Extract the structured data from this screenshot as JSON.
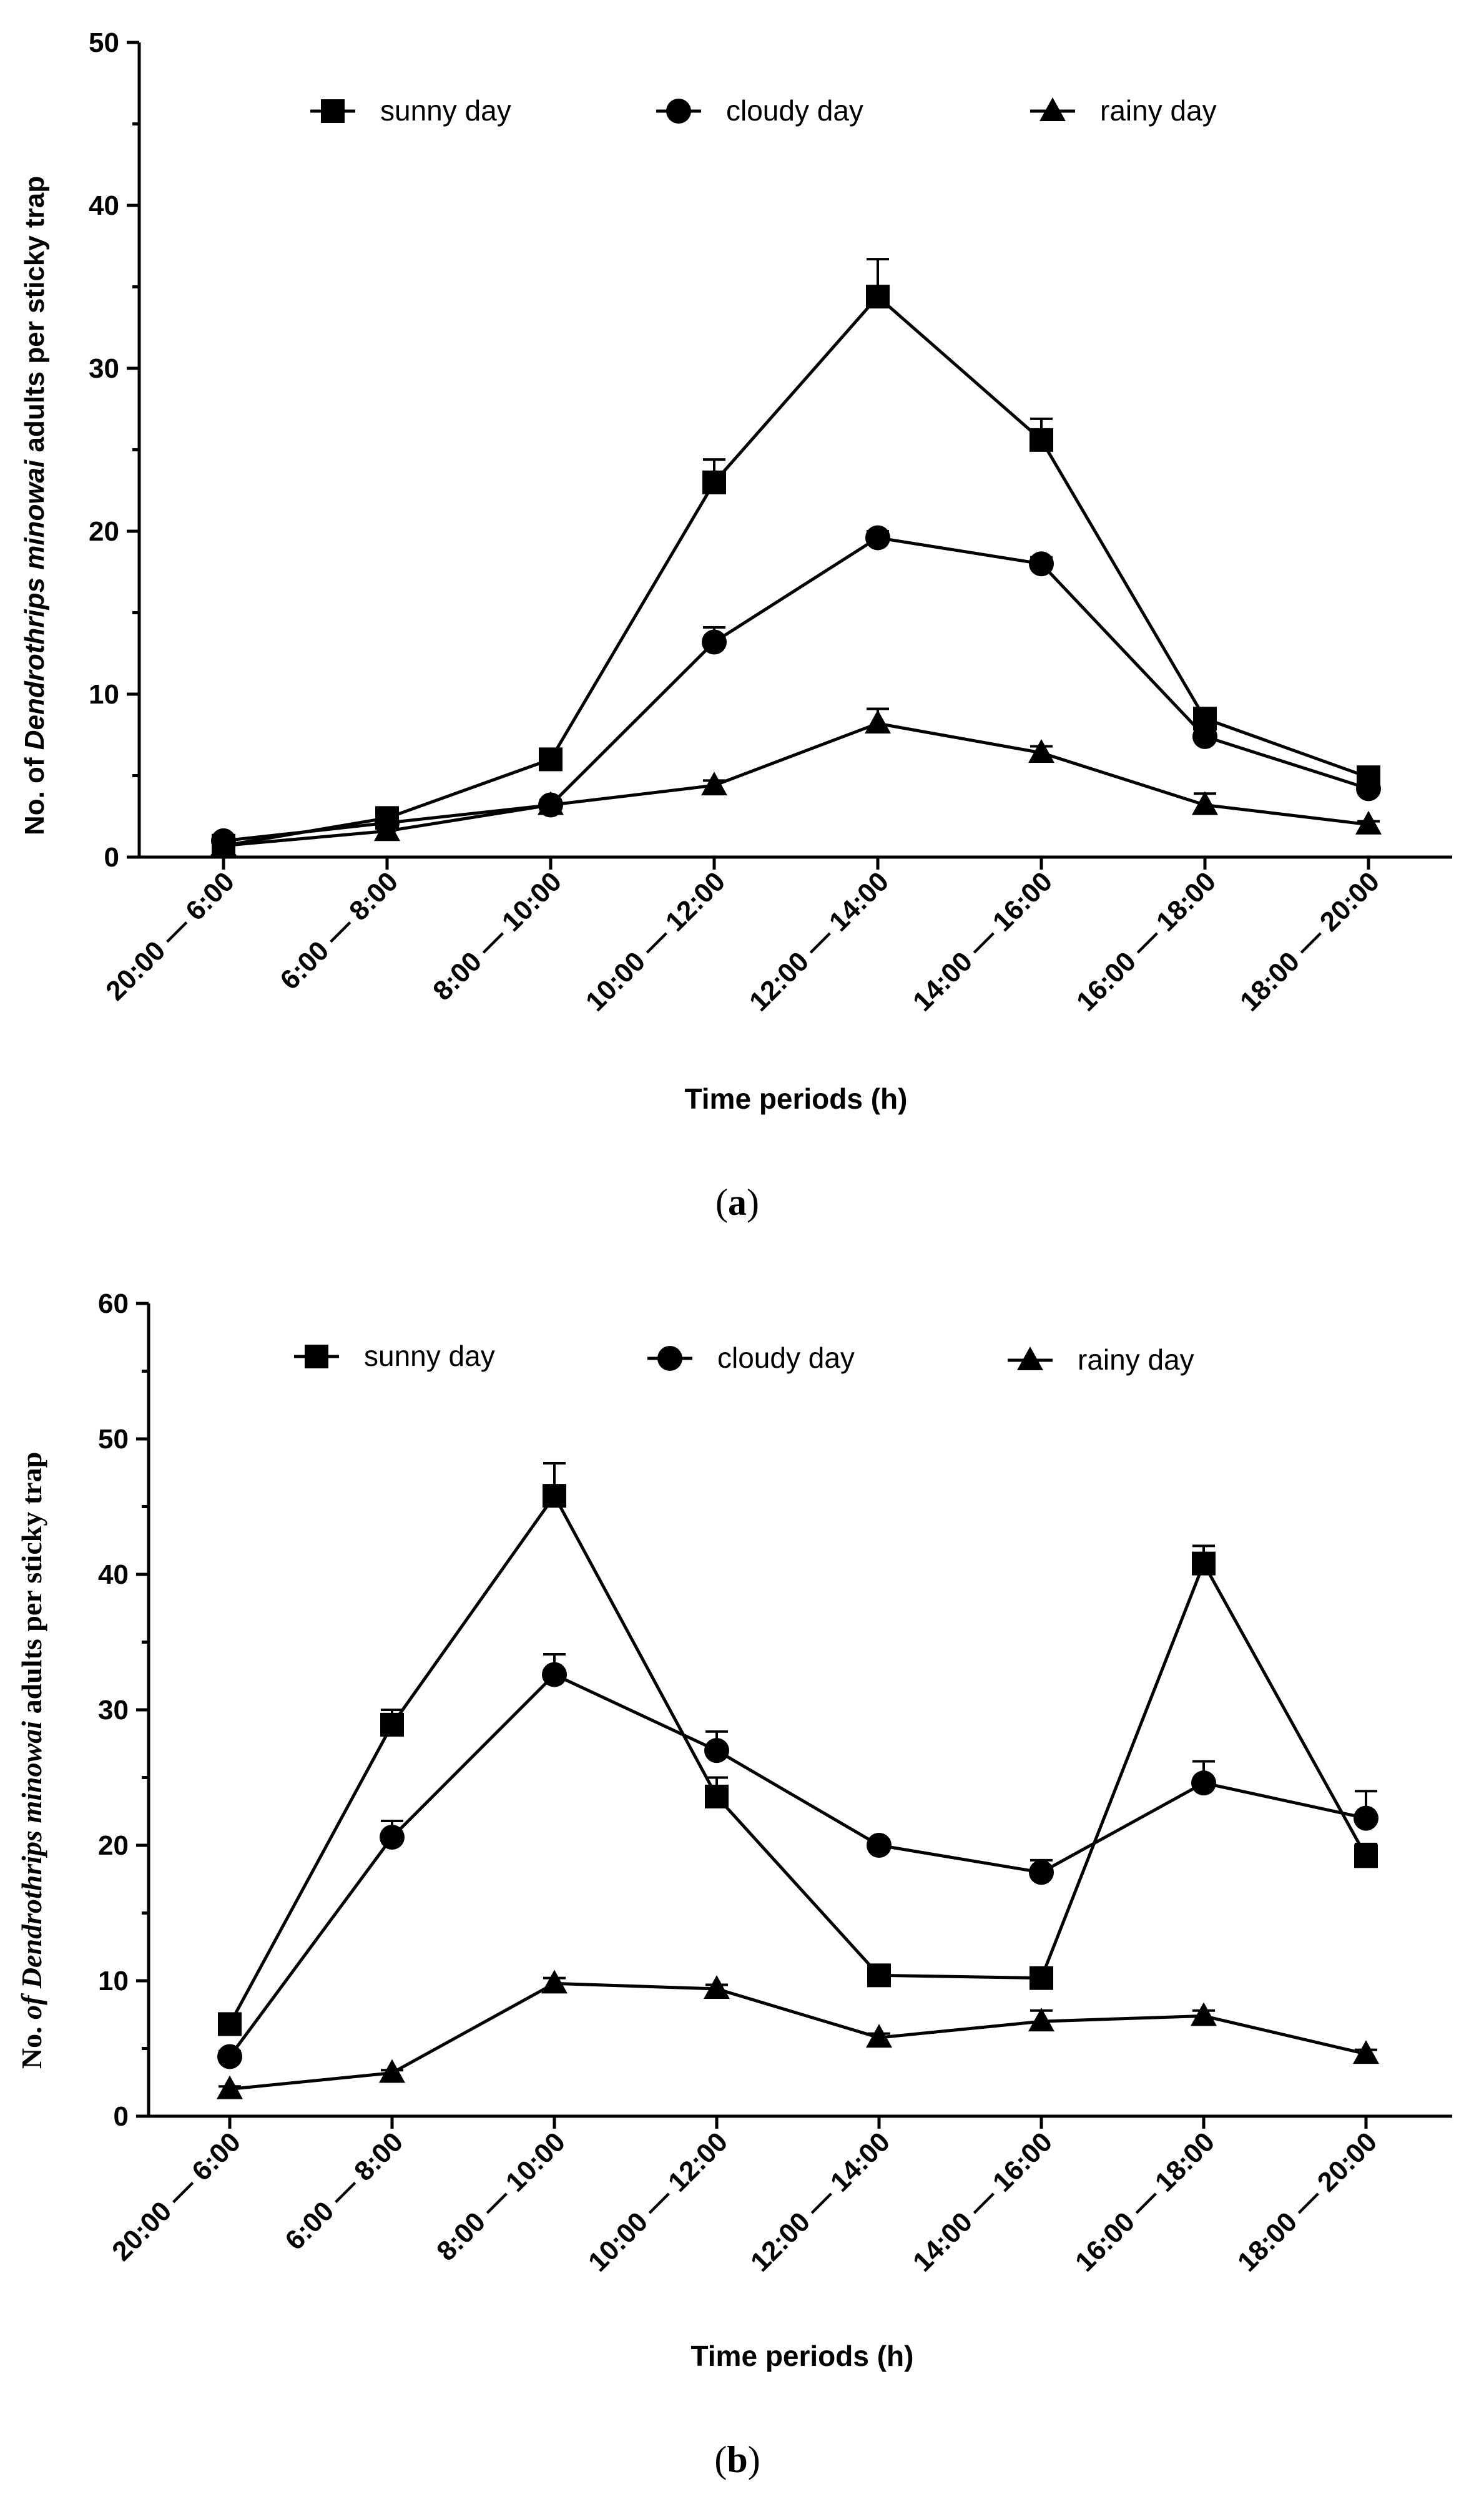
{
  "chart_data": [
    {
      "type": "line",
      "panel_label": "(a)",
      "panel_letter": "a",
      "categories": [
        "20:00 — 6:00",
        "6:00 — 8:00",
        "8:00 — 10:00",
        "10:00 — 12:00",
        "12:00 — 14:00",
        "14:00 — 16:00",
        "16:00 — 18:00",
        "18:00 — 20:00"
      ],
      "series": [
        {
          "name": "sunny day",
          "marker": "square",
          "values": [
            0.7,
            2.4,
            6.0,
            23.0,
            34.4,
            25.6,
            8.5,
            4.9
          ],
          "errors": [
            0.3,
            0.3,
            0.4,
            1.4,
            2.3,
            1.3,
            0.6,
            0.4
          ]
        },
        {
          "name": "cloudy day",
          "marker": "circle",
          "values": [
            1.0,
            2.1,
            3.2,
            13.2,
            19.6,
            18.0,
            7.4,
            4.2
          ],
          "errors": [
            0.2,
            0.2,
            0.3,
            0.9,
            0.4,
            0.4,
            0.4,
            0.3
          ]
        },
        {
          "name": "rainy day",
          "marker": "triangle",
          "values": [
            0.7,
            1.6,
            3.2,
            4.4,
            8.2,
            6.4,
            3.2,
            2.0
          ],
          "errors": [
            0.1,
            0.2,
            0.3,
            0.3,
            0.9,
            0.4,
            0.7,
            0.2
          ]
        }
      ],
      "ylim": [
        0,
        50
      ],
      "yticks": [
        "0",
        "10",
        "20",
        "30",
        "40",
        "50"
      ],
      "xlabel": "Time periods (h)",
      "ylabel_parts": [
        "No. of ",
        "Dendrothrips minowai",
        " adults per sticky trap"
      ],
      "legend": "top"
    },
    {
      "type": "line",
      "panel_label": "(b)",
      "panel_letter": "b",
      "categories": [
        "20:00 — 6:00",
        "6:00 — 8:00",
        "8:00 — 10:00",
        "10:00 — 12:00",
        "12:00 — 14:00",
        "14:00 — 16:00",
        "16:00 — 18:00",
        "18:00 — 20:00"
      ],
      "series": [
        {
          "name": "sunny day",
          "marker": "square",
          "values": [
            6.8,
            28.9,
            45.8,
            23.6,
            10.4,
            10.2,
            40.8,
            19.2
          ],
          "errors": [
            0.5,
            1.1,
            2.4,
            1.4,
            0.6,
            0.5,
            1.3,
            0.9
          ]
        },
        {
          "name": "cloudy day",
          "marker": "circle",
          "values": [
            4.4,
            20.6,
            32.6,
            27.0,
            20.0,
            18.0,
            24.6,
            22.0
          ],
          "errors": [
            0.4,
            1.2,
            1.5,
            1.4,
            0.4,
            0.9,
            1.6,
            2.0
          ]
        },
        {
          "name": "rainy day",
          "marker": "triangle",
          "values": [
            2.0,
            3.2,
            9.8,
            9.4,
            5.8,
            7.0,
            7.4,
            4.6
          ],
          "errors": [
            0.2,
            0.2,
            0.4,
            0.3,
            0.3,
            0.8,
            0.4,
            0.3
          ]
        }
      ],
      "ylim": [
        0,
        60
      ],
      "yticks": [
        "0",
        "10",
        "20",
        "30",
        "40",
        "50",
        "60"
      ],
      "xlabel": "Time periods (h)",
      "ylabel_parts": [
        "No. ",
        "of Dendrothrips minowai",
        " adults per sticky trap"
      ],
      "legend": "top"
    }
  ]
}
